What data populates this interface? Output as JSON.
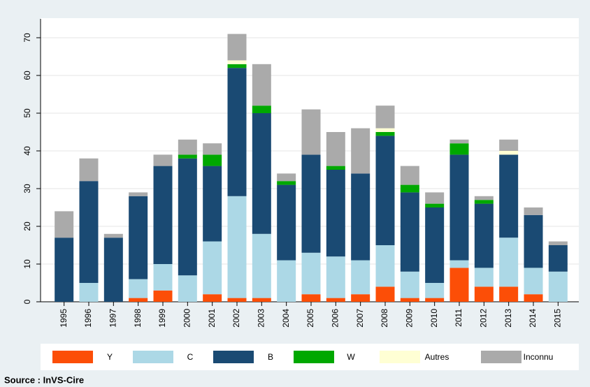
{
  "chart_data": {
    "type": "stacked-bar",
    "categories": [
      "1995",
      "1996",
      "1997",
      "1998",
      "1999",
      "2000",
      "2001",
      "2002",
      "2003",
      "2004",
      "2005",
      "2006",
      "2007",
      "2008",
      "2009",
      "2010",
      "2011",
      "2012",
      "2013",
      "2014",
      "2015"
    ],
    "series": [
      {
        "name": "Y",
        "color": "#fc4e07",
        "values": [
          0,
          0,
          0,
          1,
          3,
          0,
          2,
          1,
          1,
          0,
          2,
          1,
          2,
          4,
          1,
          1,
          9,
          4,
          4,
          2,
          0
        ]
      },
      {
        "name": "C",
        "color": "#acd8e6",
        "values": [
          0,
          5,
          0,
          5,
          7,
          7,
          14,
          27,
          17,
          11,
          11,
          11,
          9,
          11,
          7,
          4,
          2,
          5,
          13,
          7,
          8
        ]
      },
      {
        "name": "B",
        "color": "#1a4a73",
        "values": [
          17,
          27,
          17,
          22,
          26,
          31,
          20,
          34,
          32,
          20,
          26,
          23,
          23,
          29,
          21,
          20,
          28,
          17,
          22,
          14,
          7
        ]
      },
      {
        "name": "W",
        "color": "#00a800",
        "values": [
          0,
          0,
          0,
          0,
          0,
          1,
          3,
          1,
          2,
          1,
          0,
          1,
          0,
          1,
          2,
          1,
          3,
          1,
          0,
          0,
          0
        ]
      },
      {
        "name": "Autres",
        "color": "#ffffd4",
        "values": [
          0,
          0,
          0,
          0,
          0,
          0,
          0,
          1,
          0,
          0,
          0,
          0,
          0,
          1,
          0,
          0,
          0,
          0,
          1,
          0,
          0
        ]
      },
      {
        "name": "Inconnu",
        "color": "#aaaaaa",
        "values": [
          7,
          6,
          1,
          1,
          3,
          4,
          3,
          7,
          11,
          2,
          12,
          9,
          12,
          6,
          5,
          3,
          1,
          1,
          3,
          2,
          1
        ]
      }
    ],
    "ylim": [
      0,
      75
    ],
    "yticks": [
      0,
      10,
      20,
      30,
      40,
      50,
      60,
      70
    ],
    "grid": true,
    "source": "Source : InVS-Cire"
  }
}
